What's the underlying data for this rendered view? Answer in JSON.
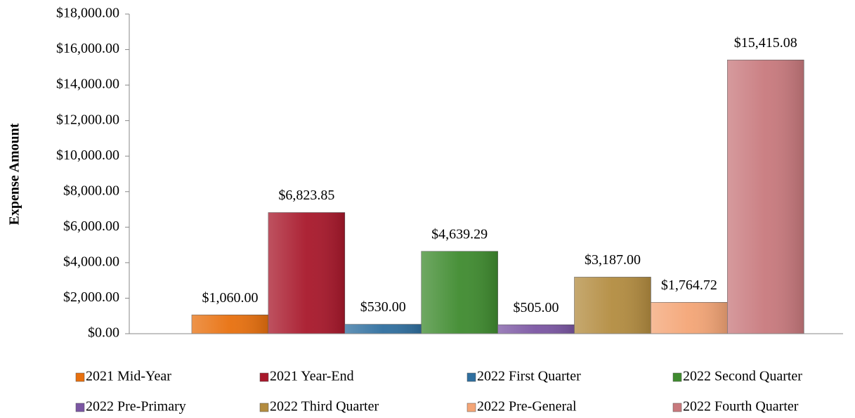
{
  "chart_data": {
    "type": "bar",
    "y_label": "Expense  Amount",
    "ylim": [
      0,
      18000
    ],
    "yticks": [
      {
        "value": 0,
        "label": "$0.00"
      },
      {
        "value": 2000,
        "label": "$2,000.00"
      },
      {
        "value": 4000,
        "label": "$4,000.00"
      },
      {
        "value": 6000,
        "label": "$6,000.00"
      },
      {
        "value": 8000,
        "label": "$8,000.00"
      },
      {
        "value": 10000,
        "label": "$10,000.00"
      },
      {
        "value": 12000,
        "label": "$12,000.00"
      },
      {
        "value": 14000,
        "label": "$14,000.00"
      },
      {
        "value": 16000,
        "label": "$16,000.00"
      },
      {
        "value": 18000,
        "label": "$18,000.00"
      }
    ],
    "legend": "bottom",
    "series": [
      {
        "name": "2021 Mid-Year",
        "color": "#e8700e",
        "values": [
          1060.0
        ],
        "value_labels": [
          "$1,060.00"
        ]
      },
      {
        "name": "2021 Year-End",
        "color": "#a8182b",
        "values": [
          6823.85
        ],
        "value_labels": [
          "$6,823.85"
        ]
      },
      {
        "name": "2022 First Quarter",
        "color": "#2f6f9f",
        "values": [
          530.0
        ],
        "value_labels": [
          "$530.00"
        ]
      },
      {
        "name": "2022 Second Quarter",
        "color": "#3f8b2f",
        "values": [
          4639.29
        ],
        "value_labels": [
          "$4,639.29"
        ]
      },
      {
        "name": "2022 Pre-Primary",
        "color": "#7b56a3",
        "values": [
          505.0
        ],
        "value_labels": [
          "$505.00"
        ]
      },
      {
        "name": "2022 Third Quarter",
        "color": "#b38c40",
        "values": [
          3187.0
        ],
        "value_labels": [
          "$3,187.00"
        ]
      },
      {
        "name": "2022 Pre-General",
        "color": "#f4a576",
        "values": [
          1764.72
        ],
        "value_labels": [
          "$1,764.72"
        ]
      },
      {
        "name": "2022 Fourth Quarter",
        "color": "#c8797d",
        "values": [
          15415.08
        ],
        "value_labels": [
          "$15,415.08"
        ]
      }
    ]
  }
}
